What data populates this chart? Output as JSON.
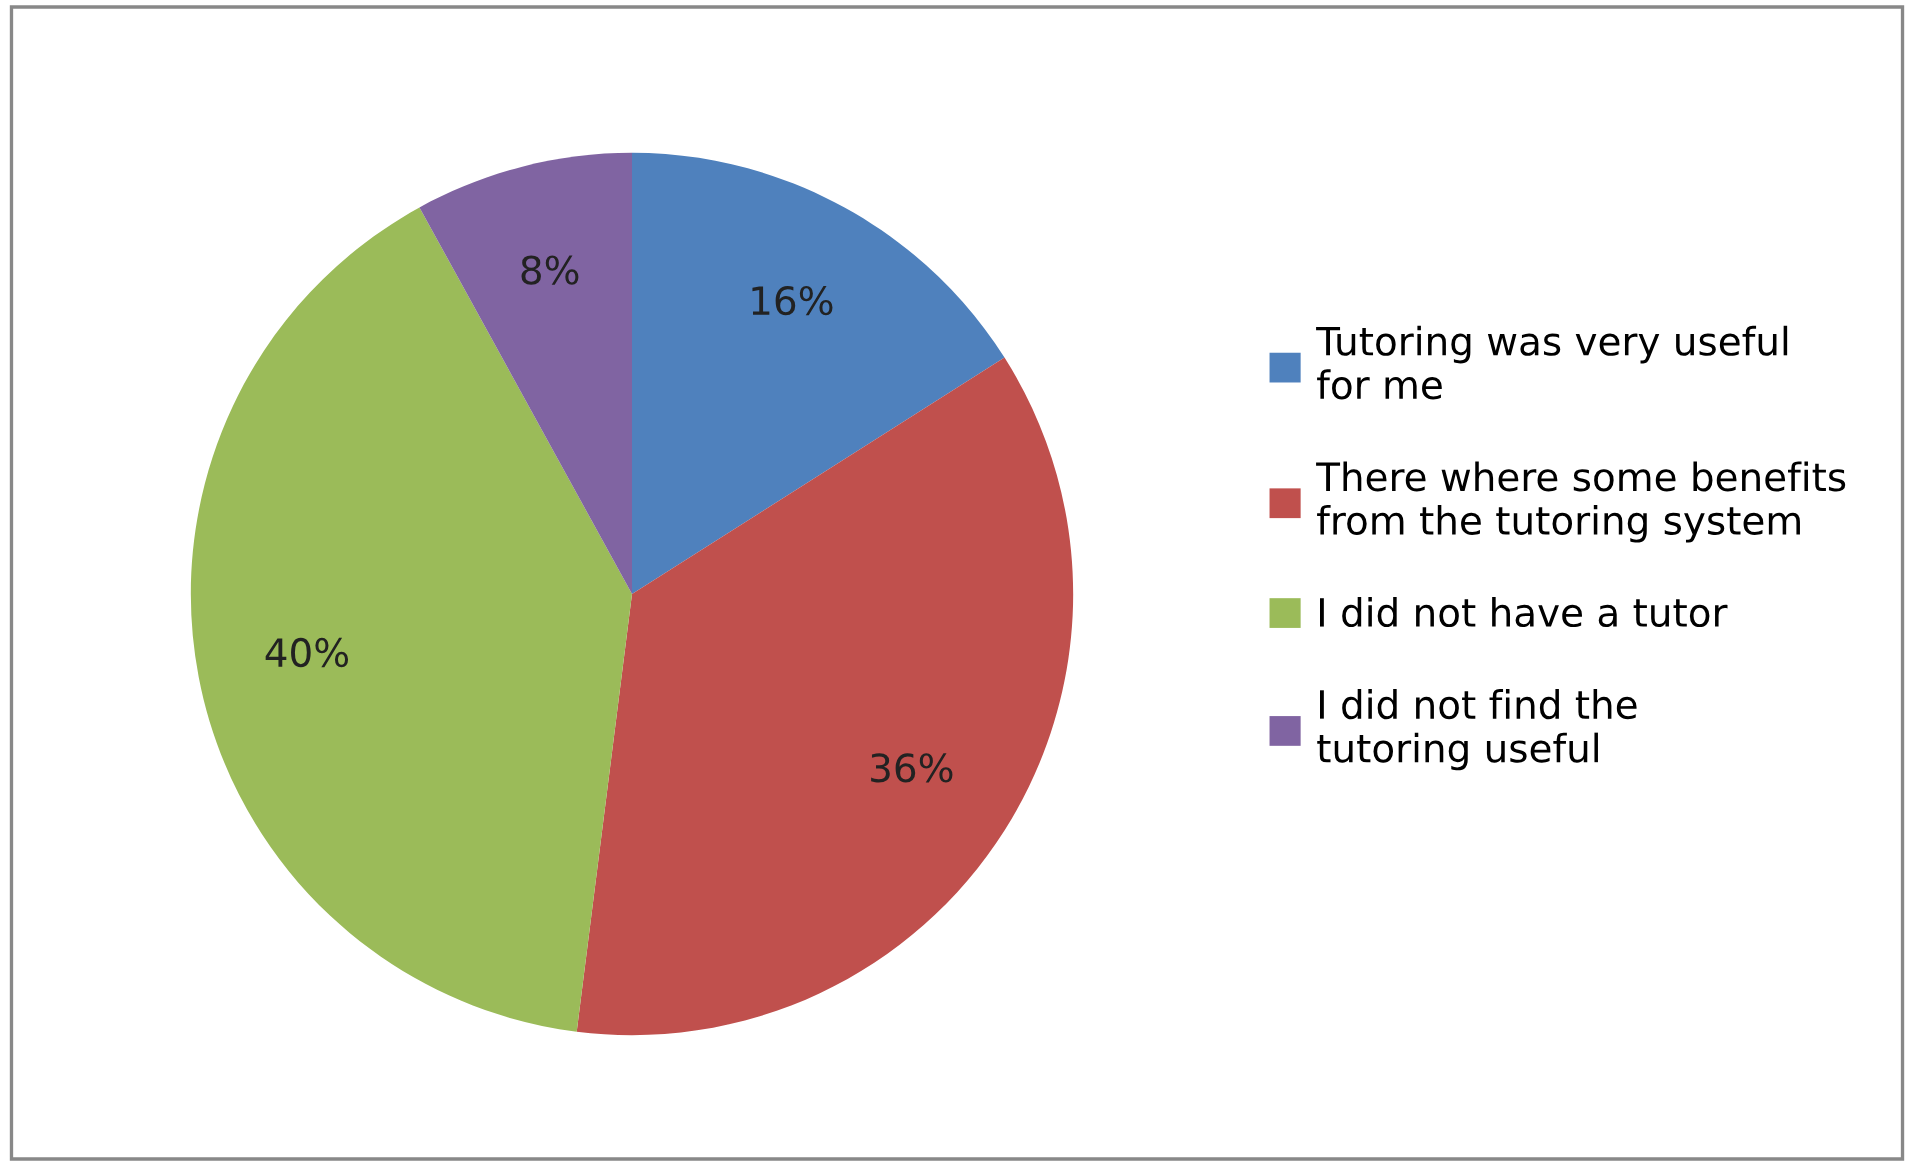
{
  "chart_data": {
    "type": "pie",
    "categories": [
      "Tutoring was very useful for me",
      "There where some benefits from the tutoring system",
      "I did not have a tutor",
      "I did not find the tutoring useful"
    ],
    "values": [
      16,
      36,
      40,
      8
    ],
    "colors": [
      "#4f81bd",
      "#c0504d",
      "#9bbb59",
      "#8064a2"
    ],
    "value_labels": [
      "16%",
      "36%",
      "40%",
      "8%"
    ],
    "legend": "right"
  }
}
